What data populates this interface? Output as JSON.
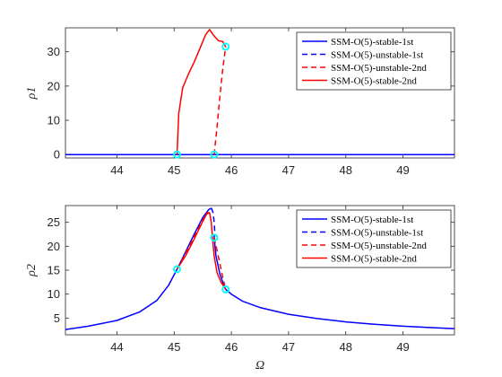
{
  "chart_data": [
    {
      "type": "line",
      "ylabel": "ρ1",
      "xlabel": "",
      "xlim": [
        43.1,
        49.9
      ],
      "ylim": [
        -1,
        37
      ],
      "xticks": [
        44,
        45,
        46,
        47,
        48,
        49
      ],
      "yticks": [
        0,
        10,
        20,
        30
      ],
      "legend": {
        "placement": "top-right",
        "entries": [
          {
            "label": "SSM-O(5)-stable-1st",
            "color": "#0000ff",
            "dash": "solid"
          },
          {
            "label": "SSM-O(5)-unstable-1st",
            "color": "#0000ff",
            "dash": "dashed"
          },
          {
            "label": "SSM-O(5)-unstable-2nd",
            "color": "#ff0000",
            "dash": "dashed"
          },
          {
            "label": "SSM-O(5)-stable-2nd",
            "color": "#ff0000",
            "dash": "solid"
          }
        ]
      },
      "series": [
        {
          "name": "SSM-O(5)-stable-1st",
          "color": "#0000ff",
          "dash": "solid",
          "x": [
            43.1,
            45.05,
            45.7,
            49.9
          ],
          "y": [
            0,
            0,
            0,
            0
          ]
        },
        {
          "name": "SSM-O(5)-unstable-1st",
          "color": "#0000ff",
          "dash": "dashed",
          "x": [
            45.05,
            45.7
          ],
          "y": [
            0,
            0
          ]
        },
        {
          "name": "SSM-O(5)-unstable-2nd",
          "color": "#ff0000",
          "dash": "dashed",
          "x": [
            45.7,
            45.75,
            45.8,
            45.85,
            45.9
          ],
          "y": [
            0,
            8,
            17,
            25,
            31.5
          ]
        },
        {
          "name": "SSM-O(5)-stable-2nd",
          "color": "#ff0000",
          "dash": "solid",
          "x": [
            45.05,
            45.08,
            45.15,
            45.25,
            45.35,
            45.45,
            45.55,
            45.62,
            45.68,
            45.73,
            45.78,
            45.85,
            45.9
          ],
          "y": [
            0,
            12,
            19.5,
            23.5,
            27,
            31,
            35,
            36.5,
            35,
            34,
            33.2,
            33,
            31.5
          ]
        }
      ],
      "markers": {
        "color": "#00ffff",
        "x": [
          45.05,
          45.7,
          45.9
        ],
        "y": [
          0,
          0,
          31.5
        ]
      }
    },
    {
      "type": "line",
      "ylabel": "ρ2",
      "xlabel": "Ω",
      "xlim": [
        43.1,
        49.9
      ],
      "ylim": [
        1.5,
        28.5
      ],
      "xticks": [
        44,
        45,
        46,
        47,
        48,
        49
      ],
      "yticks": [
        5,
        10,
        15,
        20,
        25
      ],
      "legend": {
        "placement": "top-right",
        "entries": [
          {
            "label": "SSM-O(5)-stable-1st",
            "color": "#0000ff",
            "dash": "solid"
          },
          {
            "label": "SSM-O(5)-unstable-1st",
            "color": "#0000ff",
            "dash": "dashed"
          },
          {
            "label": "SSM-O(5)-unstable-2nd",
            "color": "#ff0000",
            "dash": "dashed"
          },
          {
            "label": "SSM-O(5)-stable-2nd",
            "color": "#ff0000",
            "dash": "solid"
          }
        ]
      },
      "series": [
        {
          "name": "SSM-O(5)-stable-1st",
          "color": "#0000ff",
          "dash": "solid",
          "x": [
            43.1,
            43.5,
            44.0,
            44.4,
            44.7,
            44.9,
            45.05,
            45.2,
            45.35,
            45.5,
            45.6,
            45.65
          ],
          "y": [
            2.6,
            3.3,
            4.5,
            6.3,
            8.7,
            11.8,
            15.2,
            18.8,
            22.5,
            26.0,
            27.6,
            28.0
          ]
        },
        {
          "name": "SSM-O(5)-stable-1st-b",
          "color": "#0000ff",
          "dash": "solid",
          "x": [
            45.7,
            45.73,
            45.8,
            45.85,
            45.9,
            46.0,
            46.2,
            46.5,
            47.0,
            47.5,
            48.0,
            48.5,
            49.0,
            49.5,
            49.9
          ],
          "y": [
            21.8,
            18.0,
            14.2,
            12.5,
            11.0,
            10.0,
            8.5,
            7.2,
            5.8,
            4.9,
            4.2,
            3.7,
            3.3,
            3.0,
            2.8
          ]
        },
        {
          "name": "SSM-O(5)-unstable-1st",
          "color": "#0000ff",
          "dash": "dashed",
          "x": [
            45.65,
            45.68,
            45.7,
            45.71,
            45.7
          ],
          "y": [
            28.0,
            27.0,
            25.0,
            23.0,
            21.8
          ]
        },
        {
          "name": "SSM-O(5)-unstable-2nd",
          "color": "#ff0000",
          "dash": "dashed",
          "x": [
            45.05,
            45.2,
            45.35,
            45.5,
            45.58,
            45.62
          ],
          "y": [
            15.2,
            18.5,
            22.0,
            25.5,
            26.8,
            27.0
          ]
        },
        {
          "name": "SSM-O(5)-stable-2nd",
          "color": "#ff0000",
          "dash": "solid",
          "x": [
            45.05,
            45.2,
            45.35,
            45.5,
            45.58,
            45.62,
            45.65,
            45.67,
            45.7,
            45.75,
            45.82,
            45.9
          ],
          "y": [
            15.2,
            18.0,
            21.5,
            25.2,
            27.0,
            27.0,
            25.0,
            21.8,
            18.0,
            14.5,
            12.5,
            11.0
          ]
        },
        {
          "name": "SSM-O(5)-unstable-2nd-b",
          "color": "#ff0000",
          "dash": "dashed",
          "x": [
            45.7,
            45.78,
            45.85,
            45.9
          ],
          "y": [
            21.8,
            17.5,
            13.5,
            11.0
          ]
        }
      ],
      "markers": {
        "color": "#00ffff",
        "x": [
          45.05,
          45.7,
          45.9
        ],
        "y": [
          15.2,
          21.8,
          11.0
        ]
      }
    }
  ]
}
